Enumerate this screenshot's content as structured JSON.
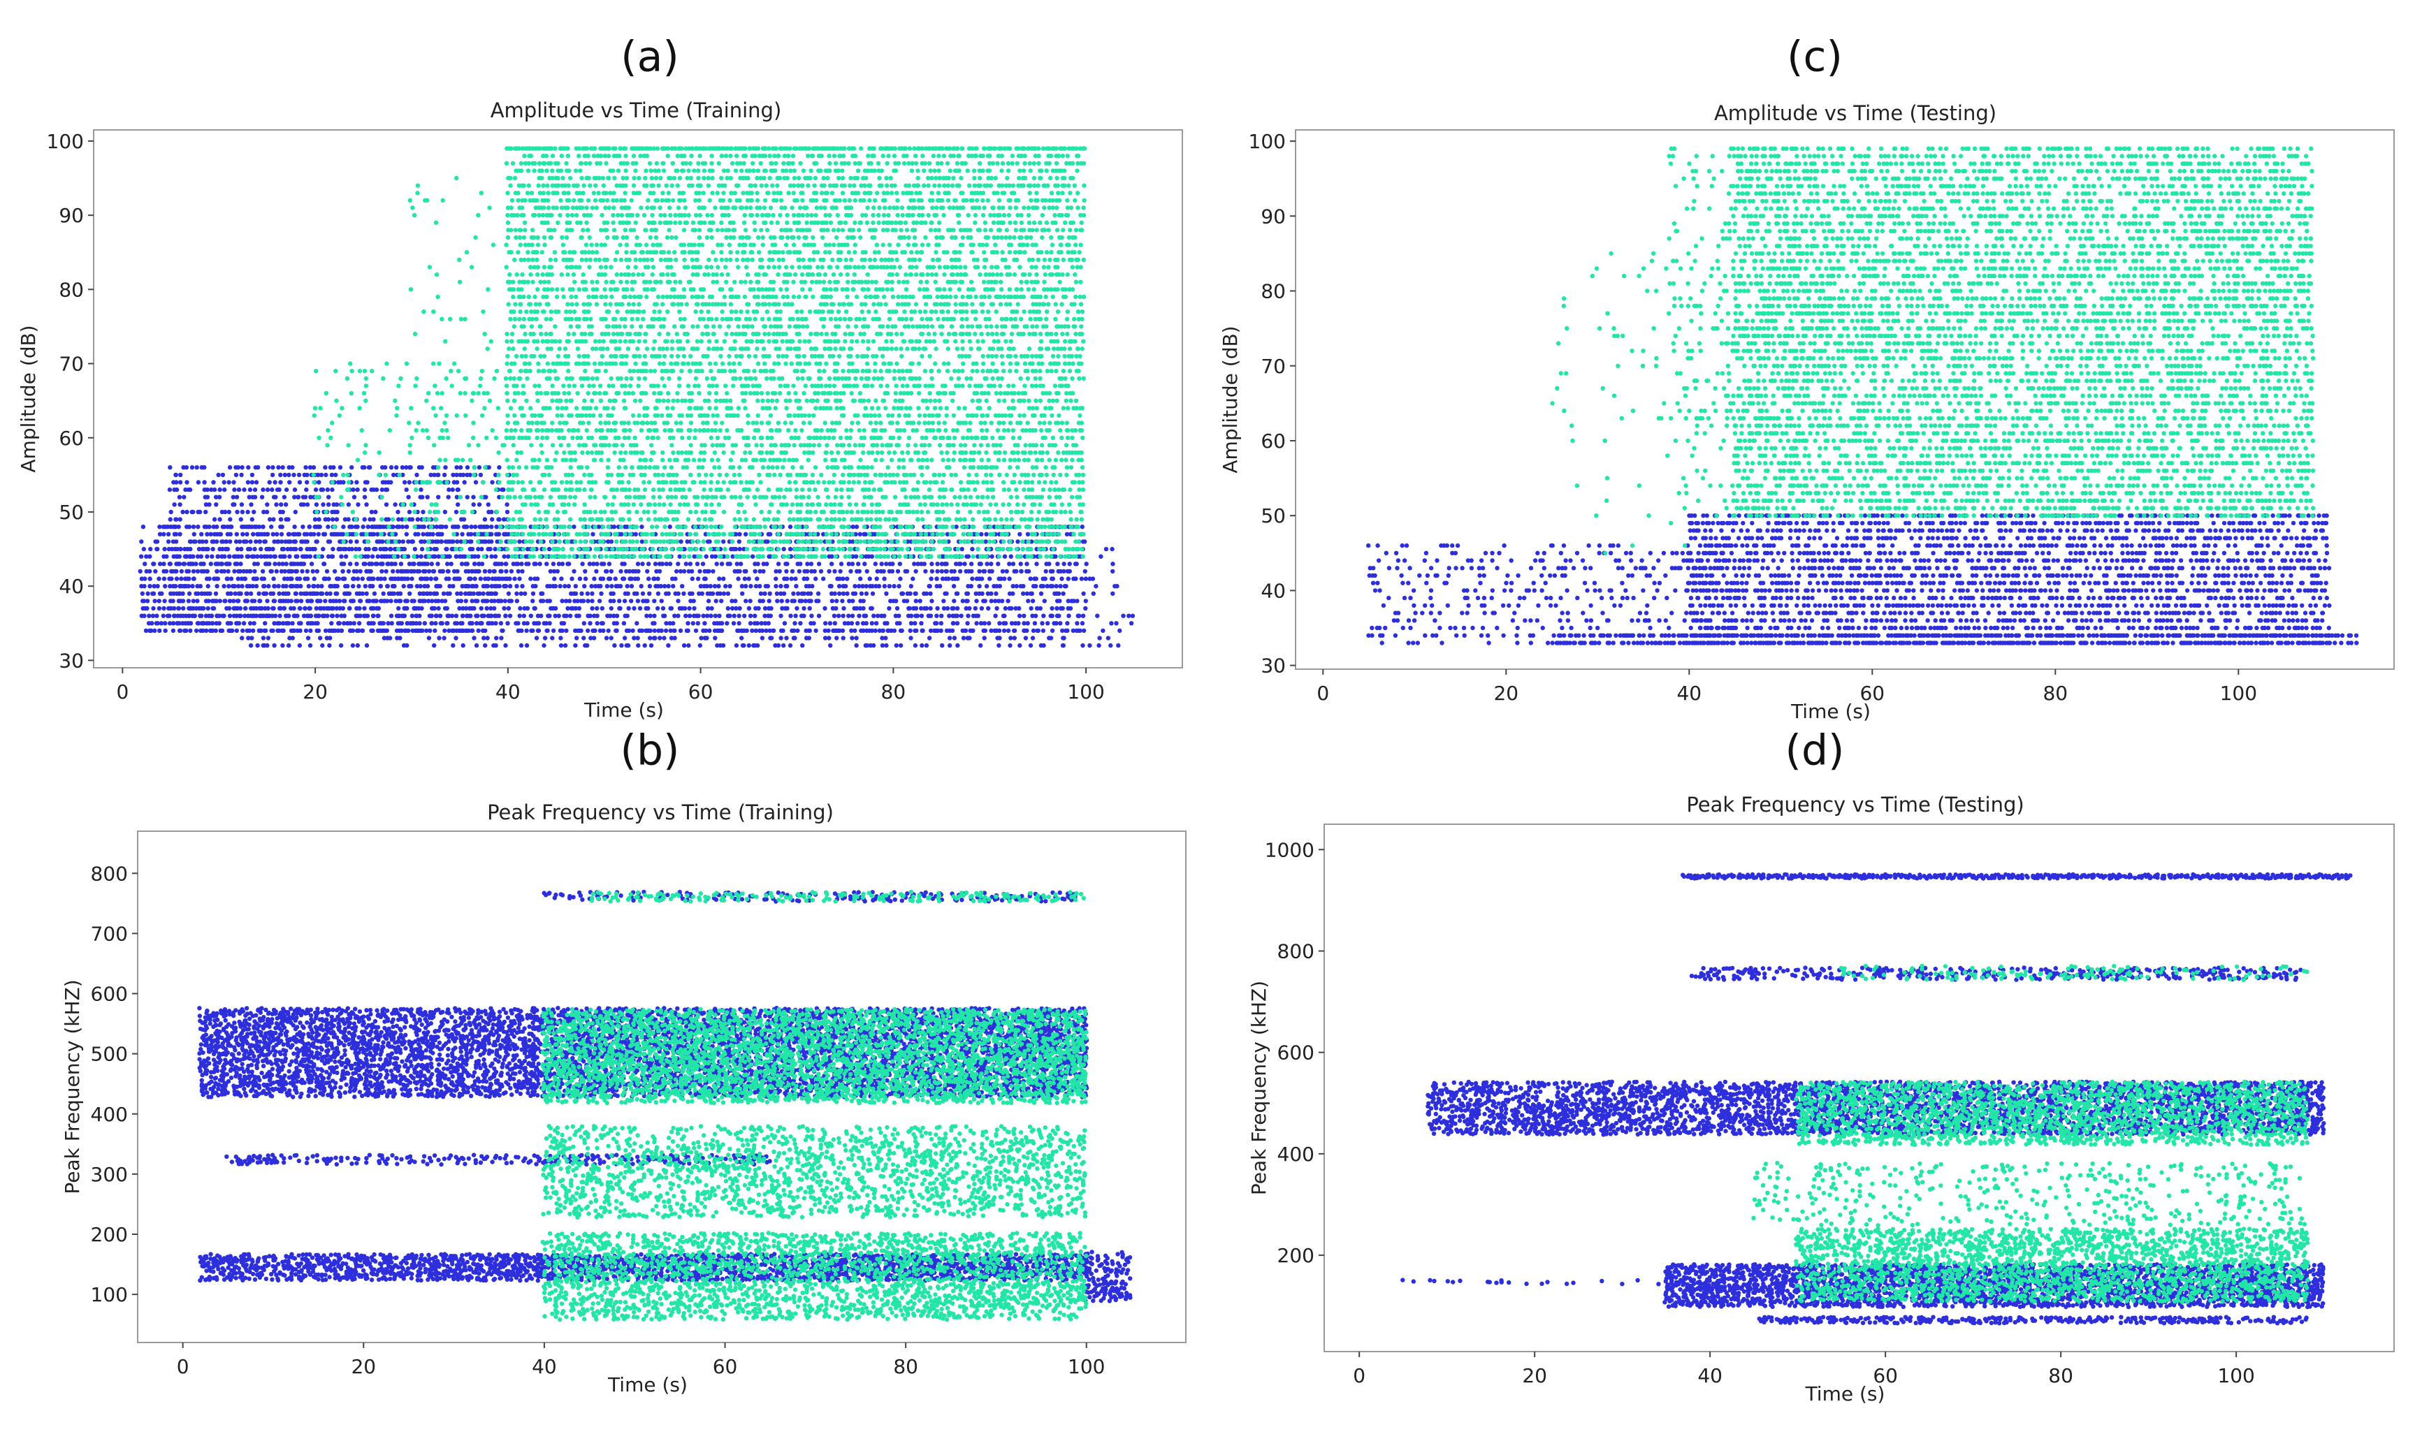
{
  "figure": {
    "colors": {
      "class_0": "#2e2fdc",
      "class_1": "#22e6a8"
    },
    "legend": "none"
  },
  "chart_data": [
    {
      "id": "a",
      "panel_label": "(a)",
      "type": "scatter",
      "title": "Amplitude vs Time (Training)",
      "xlabel": "Time (s)",
      "ylabel": "Amplitude (dB)",
      "xlim": [
        -3,
        110
      ],
      "ylim": [
        29,
        101.5
      ],
      "xticks": [
        0,
        20,
        40,
        60,
        80,
        100
      ],
      "yticks": [
        30,
        40,
        50,
        60,
        70,
        80,
        90,
        100
      ],
      "series": [
        {
          "name": "class 0",
          "color": "#2e2fdc",
          "point_clouds": [
            {
              "x": [
                2,
                100
              ],
              "y": [
                34,
                48
              ],
              "density": 0.55,
              "y_step": 1
            },
            {
              "x": [
                5,
                40
              ],
              "y": [
                34,
                56
              ],
              "density": 0.45,
              "y_step": 1
            },
            {
              "x": [
                12,
                100
              ],
              "y": [
                32,
                34
              ],
              "density": 0.35,
              "y_step": 1
            },
            {
              "x": [
                100,
                105
              ],
              "y": [
                32,
                46
              ],
              "density": 0.1,
              "y_step": 1
            }
          ]
        },
        {
          "name": "class 1",
          "color": "#22e6a8",
          "point_clouds": [
            {
              "x": [
                40,
                100
              ],
              "y": [
                44,
                99
              ],
              "density": 0.6,
              "y_step": 1
            },
            {
              "x": [
                20,
                40
              ],
              "y": [
                44,
                70
              ],
              "density": 0.12,
              "y_step": 1
            },
            {
              "x": [
                40,
                100
              ],
              "y": [
                99,
                99.5
              ],
              "density": 0.9,
              "y_step": 1
            },
            {
              "x": [
                30,
                42
              ],
              "y": [
                60,
                95
              ],
              "density": 0.05,
              "y_step": 1
            }
          ]
        }
      ]
    },
    {
      "id": "b",
      "panel_label": "(b)",
      "type": "scatter",
      "title": "Peak Frequency vs Time (Training)",
      "xlabel": "Time (s)",
      "ylabel": "Peak Frequency (kHZ)",
      "xlim": [
        -5,
        111
      ],
      "ylim": [
        20,
        870
      ],
      "xticks": [
        0,
        20,
        40,
        60,
        80,
        100
      ],
      "yticks": [
        100,
        200,
        300,
        400,
        500,
        600,
        700,
        800
      ],
      "series": [
        {
          "name": "class 0",
          "color": "#2e2fdc",
          "point_clouds": [
            {
              "x": [
                2,
                100
              ],
              "y": [
                430,
                575
              ],
              "density": 0.5,
              "y_step": 4
            },
            {
              "x": [
                2,
                100
              ],
              "y": [
                125,
                165
              ],
              "density": 0.6,
              "y_step": 4
            },
            {
              "x": [
                5,
                65
              ],
              "y": [
                318,
                330
              ],
              "density": 0.35,
              "y_step": 4
            },
            {
              "x": [
                40,
                100
              ],
              "y": [
                755,
                770
              ],
              "density": 0.25,
              "y_step": 4
            },
            {
              "x": [
                100,
                105
              ],
              "y": [
                90,
                170
              ],
              "density": 0.4,
              "y_step": 4
            }
          ]
        },
        {
          "name": "class 1",
          "color": "#22e6a8",
          "point_clouds": [
            {
              "x": [
                40,
                100
              ],
              "y": [
                420,
                575
              ],
              "density": 0.45,
              "y_step": 4
            },
            {
              "x": [
                40,
                100
              ],
              "y": [
                60,
                200
              ],
              "density": 0.35,
              "y_step": 4
            },
            {
              "x": [
                40,
                100
              ],
              "y": [
                230,
                380
              ],
              "density": 0.25,
              "y_step": 4
            },
            {
              "x": [
                45,
                100
              ],
              "y": [
                755,
                770
              ],
              "density": 0.3,
              "y_step": 4
            }
          ]
        }
      ]
    },
    {
      "id": "c",
      "panel_label": "(c)",
      "type": "scatter",
      "title": "Amplitude vs Time (Testing)",
      "xlabel": "Time (s)",
      "ylabel": "Amplitude (dB)",
      "xlim": [
        -3,
        117
      ],
      "ylim": [
        29.5,
        101.5
      ],
      "xticks": [
        0,
        20,
        40,
        60,
        80,
        100
      ],
      "yticks": [
        30,
        40,
        50,
        60,
        70,
        80,
        90,
        100
      ],
      "series": [
        {
          "name": "class 0",
          "color": "#2e2fdc",
          "point_clouds": [
            {
              "x": [
                5,
                45
              ],
              "y": [
                33,
                46
              ],
              "density": 0.25,
              "y_step": 1
            },
            {
              "x": [
                40,
                110
              ],
              "y": [
                33,
                50
              ],
              "density": 0.65,
              "y_step": 1
            },
            {
              "x": [
                25,
                113
              ],
              "y": [
                33,
                34
              ],
              "density": 0.85,
              "y_step": 1
            }
          ]
        },
        {
          "name": "class 1",
          "color": "#22e6a8",
          "point_clouds": [
            {
              "x": [
                45,
                108
              ],
              "y": [
                50,
                99
              ],
              "density": 0.55,
              "y_step": 1
            },
            {
              "x": [
                38,
                55
              ],
              "y": [
                50,
                99
              ],
              "density": 0.15,
              "y_step": 1
            },
            {
              "x": [
                25,
                40
              ],
              "y": [
                45,
                85
              ],
              "density": 0.04,
              "y_step": 1
            }
          ]
        }
      ]
    },
    {
      "id": "d",
      "panel_label": "(d)",
      "type": "scatter",
      "title": "Peak Frequency vs Time (Testing)",
      "xlabel": "Time (s)",
      "ylabel": "Peak Frequency (kHZ)",
      "xlim": [
        -4,
        118
      ],
      "ylim": [
        10,
        1050
      ],
      "xticks": [
        0,
        20,
        40,
        60,
        80,
        100
      ],
      "yticks": [
        200,
        400,
        600,
        800,
        1000
      ],
      "series": [
        {
          "name": "class 0",
          "color": "#2e2fdc",
          "point_clouds": [
            {
              "x": [
                37,
                113
              ],
              "y": [
                945,
                952
              ],
              "density": 0.95,
              "y_step": 4
            },
            {
              "x": [
                8,
                110
              ],
              "y": [
                440,
                540
              ],
              "density": 0.45,
              "y_step": 4
            },
            {
              "x": [
                35,
                110
              ],
              "y": [
                100,
                180
              ],
              "density": 0.55,
              "y_step": 4
            },
            {
              "x": [
                45,
                108
              ],
              "y": [
                68,
                78
              ],
              "density": 0.5,
              "y_step": 4
            },
            {
              "x": [
                38,
                108
              ],
              "y": [
                745,
                765
              ],
              "density": 0.3,
              "y_step": 4
            },
            {
              "x": [
                5,
                40
              ],
              "y": [
                145,
                152
              ],
              "density": 0.15,
              "y_step": 4
            }
          ]
        },
        {
          "name": "class 1",
          "color": "#22e6a8",
          "point_clouds": [
            {
              "x": [
                50,
                108
              ],
              "y": [
                420,
                540
              ],
              "density": 0.35,
              "y_step": 4
            },
            {
              "x": [
                50,
                108
              ],
              "y": [
                110,
                250
              ],
              "density": 0.35,
              "y_step": 4
            },
            {
              "x": [
                45,
                108
              ],
              "y": [
                260,
                380
              ],
              "density": 0.08,
              "y_step": 4
            },
            {
              "x": [
                55,
                108
              ],
              "y": [
                745,
                770
              ],
              "density": 0.15,
              "y_step": 4
            }
          ]
        }
      ]
    }
  ]
}
